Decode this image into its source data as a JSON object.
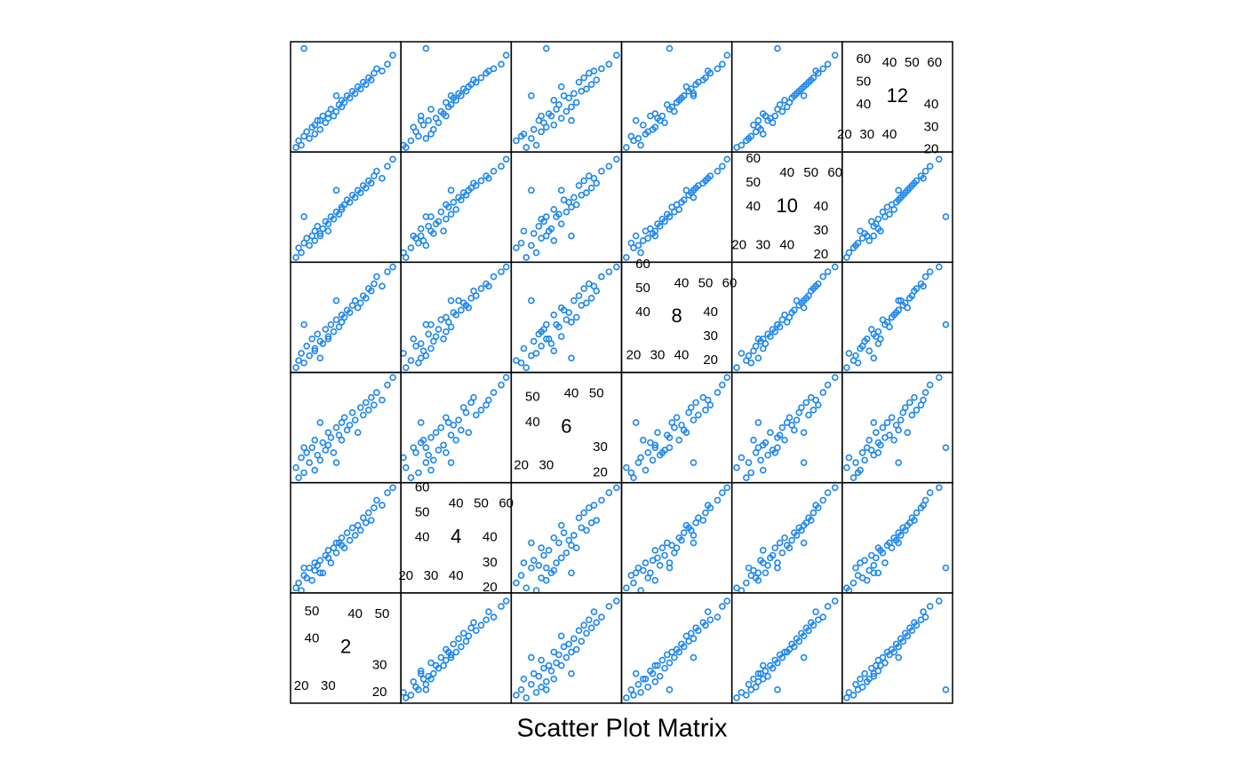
{
  "chart_data": {
    "type": "splom",
    "title": "Scatter Plot Matrix",
    "color": "#1c86ee",
    "variables": [
      {
        "name": "2",
        "lim": [
          16,
          57
        ],
        "lower_ticks": [
          20,
          30
        ],
        "upper_ticks": [
          40,
          50
        ],
        "values": [
          18,
          19,
          20,
          21,
          22,
          23,
          24,
          25,
          25,
          26,
          27,
          28,
          29,
          30,
          30,
          31,
          32,
          33,
          34,
          35,
          35,
          36,
          37,
          38,
          39,
          40,
          41,
          42,
          43,
          44,
          45,
          46,
          47,
          48,
          50,
          52,
          54,
          21,
          27,
          33
        ]
      },
      {
        "name": "4",
        "lim": [
          18,
          62
        ],
        "lower_ticks": [
          20,
          30,
          40
        ],
        "upper_ticks": [
          40,
          50,
          60
        ],
        "values": [
          20,
          22,
          19,
          25,
          24,
          28,
          23,
          30,
          27,
          29,
          31,
          26,
          33,
          32,
          35,
          30,
          36,
          34,
          38,
          37,
          40,
          36,
          42,
          39,
          44,
          41,
          45,
          43,
          48,
          46,
          50,
          47,
          52,
          55,
          53,
          58,
          60,
          28,
          26,
          38
        ]
      },
      {
        "name": "6",
        "lim": [
          16,
          60
        ],
        "lower_ticks": [
          20,
          30
        ],
        "upper_ticks": [
          40,
          50
        ],
        "values": [
          22,
          18,
          26,
          20,
          28,
          24,
          30,
          21,
          33,
          27,
          25,
          32,
          29,
          36,
          31,
          34,
          28,
          38,
          35,
          40,
          33,
          42,
          37,
          39,
          44,
          41,
          36,
          46,
          43,
          48,
          45,
          50,
          47,
          52,
          49,
          55,
          58,
          30,
          40,
          24
        ]
      },
      {
        "name": "8",
        "lim": [
          15,
          61
        ],
        "lower_ticks": [
          20,
          30,
          40
        ],
        "upper_ticks": [
          40,
          50,
          60
        ],
        "values": [
          17,
          20,
          23,
          19,
          26,
          22,
          29,
          25,
          24,
          31,
          28,
          27,
          33,
          30,
          29,
          35,
          32,
          37,
          34,
          36,
          39,
          38,
          41,
          40,
          43,
          45,
          42,
          44,
          47,
          46,
          50,
          49,
          52,
          55,
          51,
          57,
          59,
          35,
          21,
          45
        ]
      },
      {
        "name": "10",
        "lim": [
          17,
          63
        ],
        "lower_ticks": [
          20,
          30,
          40
        ],
        "upper_ticks": [
          40,
          50,
          60
        ],
        "values": [
          19,
          23,
          21,
          25,
          27,
          24,
          28,
          30,
          26,
          32,
          29,
          31,
          34,
          33,
          30,
          36,
          35,
          38,
          37,
          40,
          39,
          41,
          43,
          42,
          45,
          44,
          47,
          46,
          49,
          48,
          51,
          50,
          53,
          55,
          52,
          57,
          60,
          36,
          28,
          47
        ]
      },
      {
        "name": "12",
        "lim": [
          19,
          68
        ],
        "lower_ticks": [
          20,
          30,
          40
        ],
        "upper_ticks": [
          40,
          50,
          60
        ],
        "values": [
          21,
          24,
          22,
          26,
          28,
          25,
          30,
          27,
          31,
          33,
          29,
          35,
          32,
          34,
          36,
          38,
          35,
          37,
          40,
          39,
          42,
          41,
          44,
          43,
          46,
          45,
          48,
          47,
          50,
          49,
          52,
          51,
          54,
          56,
          55,
          58,
          62,
          65,
          33,
          44
        ]
      }
    ]
  }
}
